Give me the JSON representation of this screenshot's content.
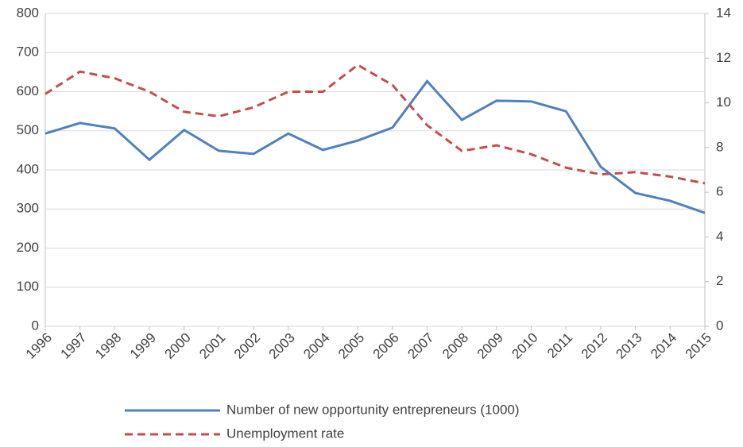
{
  "chart_data": {
    "type": "line",
    "categories": [
      "1996",
      "1997",
      "1998",
      "1999",
      "2000",
      "2001",
      "2002",
      "2003",
      "2004",
      "2005",
      "2006",
      "2007",
      "2008",
      "2009",
      "2010",
      "2011",
      "2012",
      "2013",
      "2014",
      "2015"
    ],
    "series": [
      {
        "name": "Number of new opportunity entrepreneurs (1000)",
        "color": "#4f81bd",
        "dash": "solid",
        "values": [
          493,
          520,
          506,
          426,
          502,
          449,
          441,
          493,
          451,
          475,
          508,
          627,
          528,
          577,
          575,
          550,
          408,
          341,
          321,
          290
        ]
      },
      {
        "name": "Unemployment rate",
        "color": "#c0504d",
        "dash": "dashed",
        "axis": "y2",
        "values": [
          10.4,
          11.4,
          11.1,
          10.5,
          9.6,
          9.4,
          9.8,
          10.5,
          10.5,
          11.7,
          10.8,
          9.0,
          7.85,
          8.1,
          7.7,
          7.1,
          6.8,
          6.9,
          6.7,
          6.4
        ]
      }
    ],
    "ylim": [
      0,
      800
    ],
    "yticks": [
      0,
      100,
      200,
      300,
      400,
      500,
      600,
      700,
      800
    ],
    "y2lim": [
      0,
      14
    ],
    "y2ticks": [
      0,
      2,
      4,
      6,
      8,
      10,
      12,
      14
    ],
    "grid": true,
    "legend": "bottom"
  }
}
